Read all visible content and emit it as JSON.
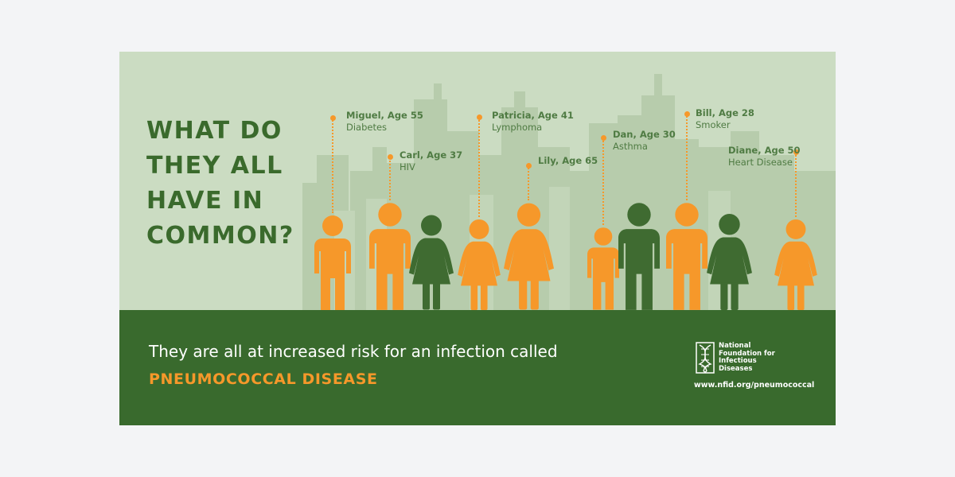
{
  "headline": [
    "WHAT DO",
    "THEY ALL",
    "HAVE IN",
    "COMMON?"
  ],
  "people": [
    {
      "name": "Miguel, Age 55",
      "condition": "Diabetes",
      "type": "man",
      "color": "orange"
    },
    {
      "name": "Carl, Age 37",
      "condition": "HIV",
      "type": "man",
      "color": "orange"
    },
    {
      "type": "woman",
      "color": "green"
    },
    {
      "name": "Patricia, Age 41",
      "condition": "Lymphoma",
      "type": "woman",
      "color": "orange"
    },
    {
      "name": "Lily, Age 65",
      "condition": "",
      "type": "woman",
      "color": "orange"
    },
    {
      "name": "Dan, Age 30",
      "condition": "Asthma",
      "type": "boy",
      "color": "orange"
    },
    {
      "type": "man",
      "color": "green"
    },
    {
      "name": "Bill, Age 28",
      "condition": "Smoker",
      "type": "man",
      "color": "orange"
    },
    {
      "type": "woman",
      "color": "green"
    },
    {
      "name": "Diane, Age 50",
      "condition": "Heart Disease",
      "type": "woman",
      "color": "orange"
    }
  ],
  "tagline": "They are all at increased risk for an infection called",
  "disease": "PNEUMOCOCCAL DISEASE",
  "logo": {
    "lines": [
      "National",
      "Foundation for",
      "Infectious",
      "Diseases"
    ]
  },
  "url": "www.nfid.org/pneumococcal",
  "colors": {
    "background": "#f3f4f6",
    "sky": "#cbdcc2",
    "skyline": "#b7ccac",
    "footer": "#396a2d",
    "headline": "#3a6a2c",
    "orange": "#f6982a",
    "green": "#3f6b31",
    "label": "#4f7b43"
  }
}
